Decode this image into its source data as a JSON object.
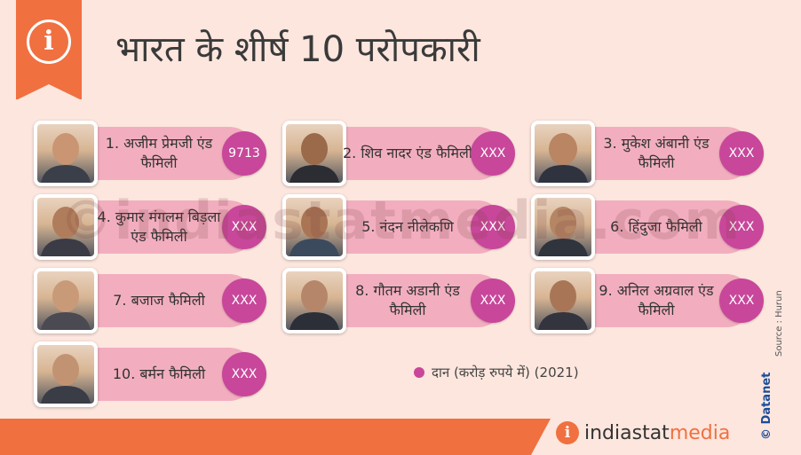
{
  "header": {
    "title": "भारत के शीर्ष 10 परोपकारी",
    "icon": "info-icon"
  },
  "cards": [
    {
      "name": "1. अजीम प्रेमजी एंड फैमिली",
      "value": "9713"
    },
    {
      "name": "2. शिव नादर एंड फैमिली",
      "value": "XXX"
    },
    {
      "name": "3. मुकेश अंबानी एंड फैमिली",
      "value": "XXX"
    },
    {
      "name": "4. कुमार मंगलम बिड़ला एंड फैमिली",
      "value": "XXX"
    },
    {
      "name": "5. नंदन नीलेकणि",
      "value": "XXX"
    },
    {
      "name": "6. हिंदुजा फैमिली",
      "value": "XXX"
    },
    {
      "name": "7. बजाज फैमिली",
      "value": "XXX"
    },
    {
      "name": "8. गौतम अडानी एंड फैमिली",
      "value": "XXX"
    },
    {
      "name": "9. अनिल अग्रवाल एंड फैमिली",
      "value": "XXX"
    },
    {
      "name": "10. बर्मन फैमिली",
      "value": "XXX"
    }
  ],
  "legend": {
    "label": "दान (करोड़ रुपये में) (2021)",
    "color": "#c8479a"
  },
  "source": "Source : Hurun",
  "credit": "© Datanet",
  "brand": {
    "part1": "indiastat",
    "part2": "media",
    "icon": "info-icon"
  },
  "watermark": "©indiastatmedia.com",
  "colors": {
    "accent": "#f07040",
    "pill": "#f2aebf",
    "value_circle": "#c8479a",
    "background": "#fce6de"
  }
}
